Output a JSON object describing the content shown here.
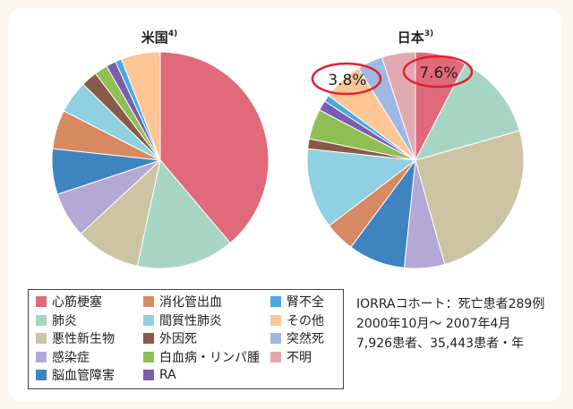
{
  "colors": {
    "心筋梗塞": "#e0697a",
    "肺炎": "#a8d5c3",
    "悪性新生物": "#cbc3a2",
    "感染症": "#b3a9d4",
    "脳血管障害": "#3f84c1",
    "消化管出血": "#d78a61",
    "間質性肺炎": "#8fd1e1",
    "外因死": "#8a5a48",
    "白血病・リンパ腫": "#8fbf55",
    "RA": "#7b5cb0",
    "腎不全": "#4aa8e5",
    "その他": "#fcc697",
    "突然死": "#9fb8e4",
    "不明": "#e3a9b0"
  },
  "chart_data": [
    {
      "type": "pie",
      "title": "米国",
      "title_sup": "4)",
      "slices": [
        {
          "label": "心筋梗塞",
          "value": 40
        },
        {
          "label": "肺炎",
          "value": 15
        },
        {
          "label": "悪性新生物",
          "value": 10
        },
        {
          "label": "感染症",
          "value": 7
        },
        {
          "label": "脳血管障害",
          "value": 7
        },
        {
          "label": "消化管出血",
          "value": 6
        },
        {
          "label": "間質性肺炎",
          "value": 5
        },
        {
          "label": "外因死",
          "value": 2.5
        },
        {
          "label": "白血病・リンパ腫",
          "value": 2
        },
        {
          "label": "RA",
          "value": 1.5
        },
        {
          "label": "腎不全",
          "value": 1
        },
        {
          "label": "その他",
          "value": 6
        }
      ]
    },
    {
      "type": "pie",
      "title": "日本",
      "title_sup": "3)",
      "annotations": [
        {
          "text": "3.8%",
          "label": "突然死"
        },
        {
          "text": "7.6%",
          "label": "心筋梗塞"
        }
      ],
      "slices": [
        {
          "label": "心筋梗塞",
          "value": 7.6
        },
        {
          "label": "肺炎",
          "value": 13
        },
        {
          "label": "悪性新生物",
          "value": 25
        },
        {
          "label": "感染症",
          "value": 6
        },
        {
          "label": "脳血管障害",
          "value": 8.5
        },
        {
          "label": "消化管出血",
          "value": 4.5
        },
        {
          "label": "間質性肺炎",
          "value": 12
        },
        {
          "label": "外因死",
          "value": 1.5
        },
        {
          "label": "白血病・リンパ腫",
          "value": 4.5
        },
        {
          "label": "RA",
          "value": 1.5
        },
        {
          "label": "腎不全",
          "value": 1
        },
        {
          "label": "その他",
          "value": 6
        },
        {
          "label": "突然死",
          "value": 3.8
        },
        {
          "label": "不明",
          "value": 5
        }
      ]
    }
  ],
  "legend": {
    "columns": [
      [
        "心筋梗塞",
        "肺炎",
        "悪性新生物",
        "感染症",
        "脳血管障害"
      ],
      [
        "消化管出血",
        "間質性肺炎",
        "外因死",
        "白血病・リンパ腫",
        "RA"
      ],
      [
        "腎不全",
        "その他",
        "突然死",
        "不明"
      ]
    ]
  },
  "cohort": [
    "IORRAコホート：死亡患者289例",
    "2000年10月～ 2007年4月",
    "7,926患者、35,443患者・年"
  ]
}
